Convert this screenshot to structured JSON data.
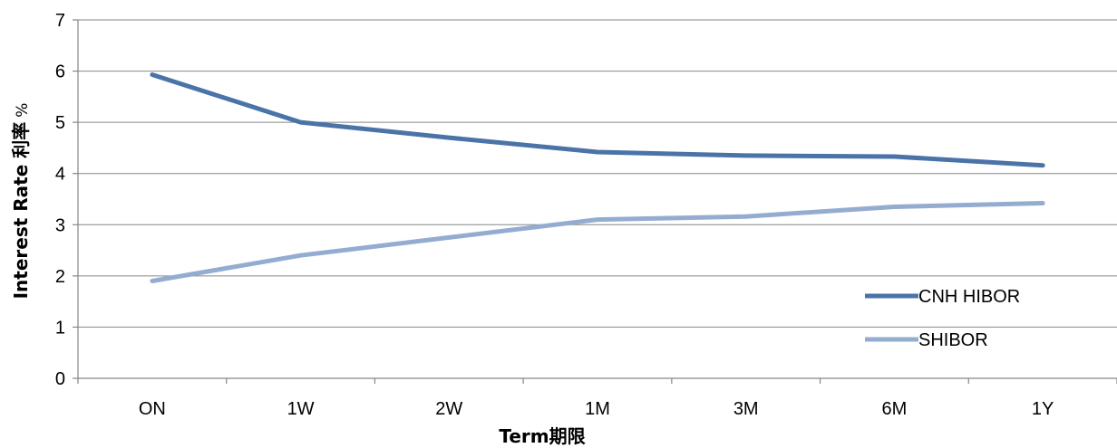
{
  "chart_data": {
    "type": "line",
    "title": "",
    "xlabel": "Term期限",
    "ylabel": "Interest Rate 利率",
    "ylabel_unit": "%",
    "categories": [
      "ON",
      "1W",
      "2W",
      "1M",
      "3M",
      "6M",
      "1Y"
    ],
    "ylim": [
      0,
      7
    ],
    "yticks": [
      0,
      1,
      2,
      3,
      4,
      5,
      6,
      7
    ],
    "grid": true,
    "legend_position": "bottom-right",
    "series": [
      {
        "name": "CNH HIBOR",
        "color": "#4a73a8",
        "values": [
          5.93,
          5.0,
          4.7,
          4.42,
          4.35,
          4.33,
          4.16
        ]
      },
      {
        "name": "SHIBOR",
        "color": "#95acd1",
        "values": [
          1.9,
          2.4,
          2.75,
          3.1,
          3.16,
          3.35,
          3.42
        ]
      }
    ]
  }
}
